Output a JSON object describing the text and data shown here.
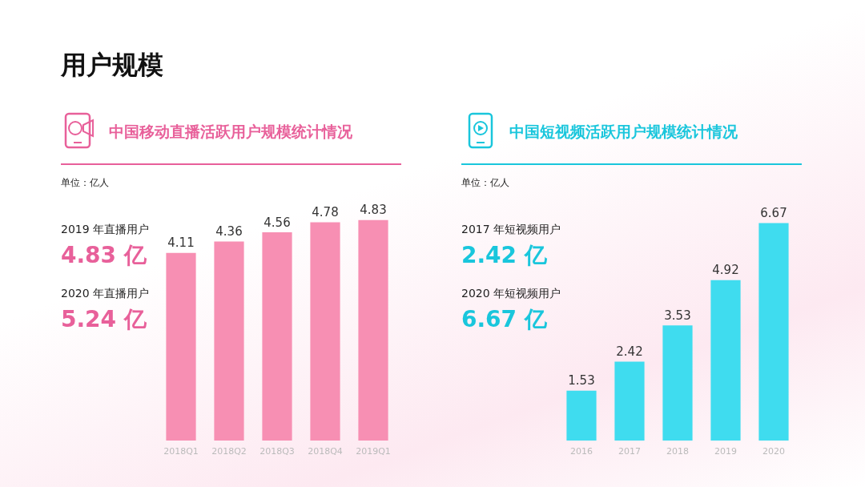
{
  "chart_data": [
    {
      "type": "bar",
      "title": "中国移动直播活跃用户规模统计情况",
      "subtitle": "单位：亿人",
      "annotations": [
        "用户规模",
        "2019 年直播用户",
        "4.83 亿",
        "2020 年直播用户",
        "5.24 亿"
      ],
      "categories": [
        "2018Q1",
        "2018Q2",
        "2018Q3",
        "2018Q4",
        "2019Q1"
      ],
      "series": [
        {
          "color": "#f78fb3",
          "values": [
            4.11,
            4.36,
            4.56,
            4.78,
            4.83
          ]
        }
      ],
      "data_labels": true,
      "grid": false
    },
    {
      "type": "bar",
      "title": "中国短视频活跃用户规模统计情况",
      "subtitle": "单位：亿人",
      "annotations": [
        "2017 年短视频用户",
        "2.42 亿",
        "2020 年短视频用户",
        "6.67 亿"
      ],
      "categories": [
        "2016",
        "2017",
        "2018",
        "2019",
        "2020"
      ],
      "series": [
        {
          "color": "#3fdcef",
          "values": [
            1.53,
            2.42,
            3.53,
            4.92,
            6.67
          ]
        }
      ],
      "data_labels": true,
      "grid": false
    }
  ]
}
